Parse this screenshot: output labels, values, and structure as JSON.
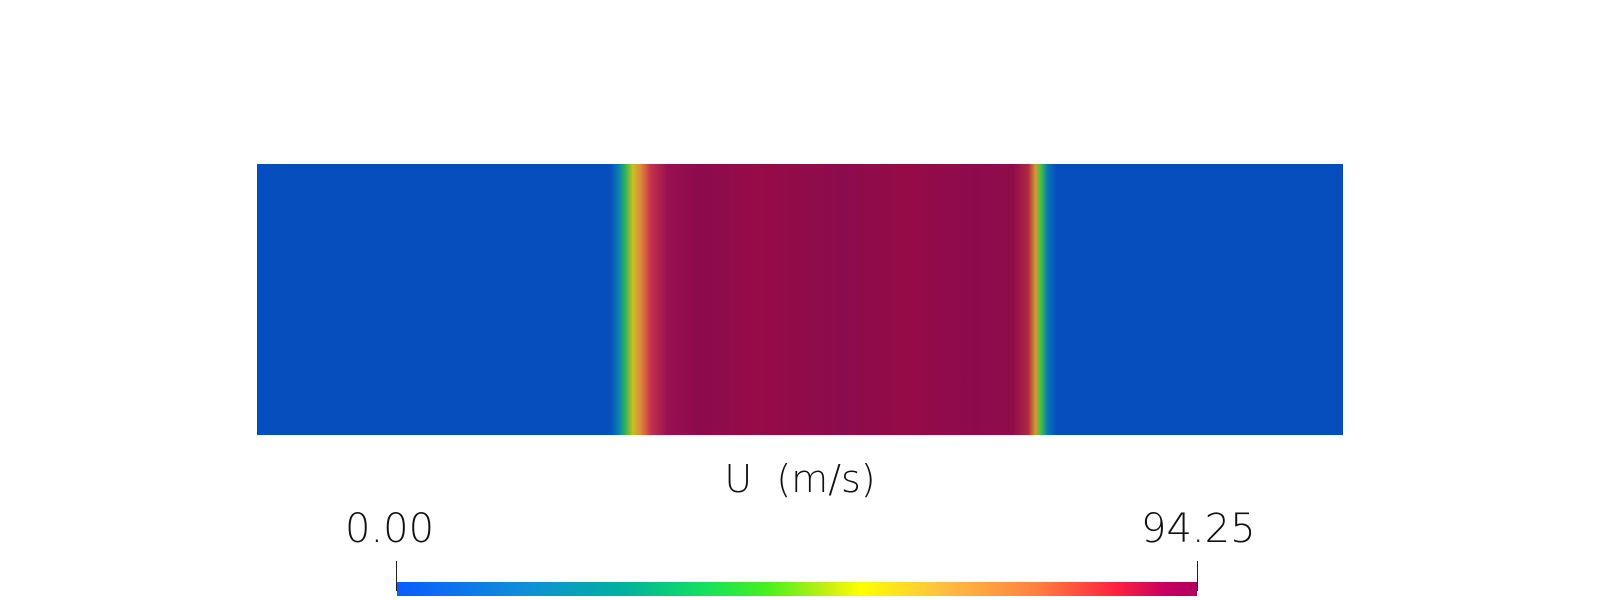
{
  "legend": {
    "title": "U  (m/s)",
    "min_label": "0.00",
    "max_label": "94.25",
    "range": [
      0.0,
      94.25
    ]
  },
  "colors": {
    "background": "#ffffff",
    "low_value": "#064dbd",
    "high_value": "#8f0b4a"
  }
}
